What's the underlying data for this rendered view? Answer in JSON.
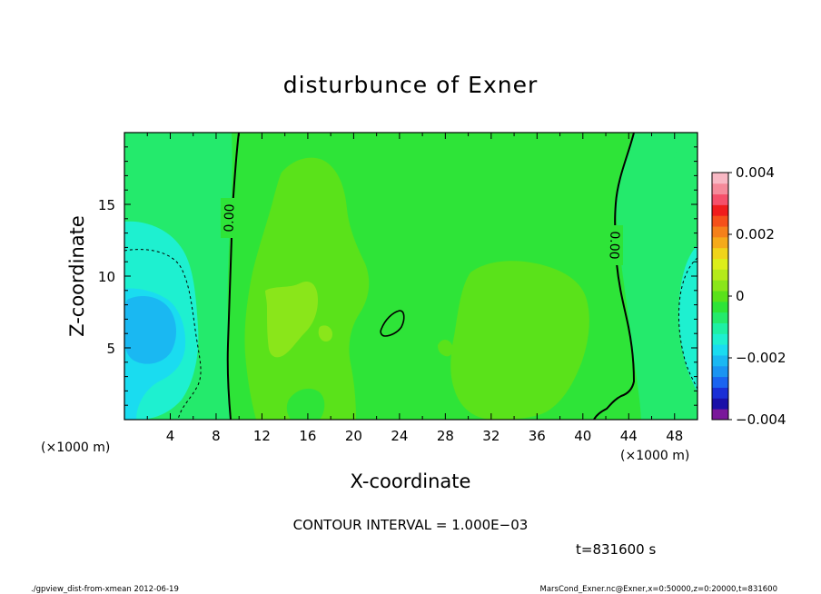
{
  "chart_data": {
    "type": "heatmap",
    "title": "disturbunce of Exner",
    "xlabel": "X-coordinate",
    "ylabel": "Z-coordinate",
    "x_unit_left": "(×1000 m)",
    "x_unit_right": "(×1000 m)",
    "xlim": [
      0,
      50
    ],
    "ylim": [
      0,
      20
    ],
    "x_ticks": [
      4,
      8,
      12,
      16,
      20,
      24,
      28,
      32,
      36,
      40,
      44,
      48
    ],
    "x_tick_labels": [
      "4",
      "8",
      "12",
      "16",
      "20",
      "24",
      "28",
      "32",
      "36",
      "40",
      "44",
      "48"
    ],
    "y_ticks": [
      5,
      10,
      15
    ],
    "y_tick_labels": [
      "5",
      "10",
      "15"
    ],
    "contour_labels": [
      "0.00",
      "0.00"
    ],
    "colorbar": {
      "min": -0.004,
      "max": 0.004,
      "tick_values": [
        -0.004,
        -0.002,
        0,
        0.002,
        0.004
      ],
      "tick_labels": [
        "−0.004",
        "−0.002",
        "0",
        "0.002",
        "0.004"
      ],
      "colors": [
        "#7a189a",
        "#1a10a8",
        "#1a2fd6",
        "#1a64f0",
        "#1a94f2",
        "#1ab8f2",
        "#1adcf0",
        "#1ef0d0",
        "#1ef0a4",
        "#24ea6c",
        "#2ee438",
        "#5ae21a",
        "#8ae61a",
        "#b4ea1a",
        "#dcee1a",
        "#f0d41a",
        "#f5aa1a",
        "#f5801a",
        "#f5501a",
        "#f01c1c",
        "#f5506a",
        "#f58a9a",
        "#f8b8c4"
      ]
    },
    "regions": [
      {
        "level": "0 to 0.0005",
        "color": "#2ee438",
        "description": "band near x 9–40 ×1000 m"
      },
      {
        "level": "0.0005 to 0.001",
        "color": "#5ae21a",
        "description": "blobs near x 11–19 and 28–41"
      },
      {
        "level": "0.001 to 0.0015",
        "color": "#8ae61a",
        "description": "small patch near x 13–16, z 4–9"
      },
      {
        "level": "-0.0005 to 0",
        "color": "#24ea6c",
        "description": "left and right edge bands"
      },
      {
        "level": "-0.0015 to -0.001",
        "color": "#1ef0d0",
        "description": "near x 0–5 and 47–50"
      },
      {
        "level": "-0.002 to -0.0015",
        "color": "#1adcf0",
        "description": "core near x 0–4, z 4–10"
      }
    ]
  },
  "footer": {
    "contour_interval": "CONTOUR INTERVAL = 1.000E−03",
    "time": "t=831600 s",
    "script_info": "./gpview_dist-from-xmean 2012-06-19",
    "file_info": "MarsCond_Exner.nc@Exner,x=0:50000,z=0:20000,t=831600"
  },
  "colors": {
    "contour_line": "#000000",
    "frame": "#000000",
    "background": "#ffffff"
  }
}
